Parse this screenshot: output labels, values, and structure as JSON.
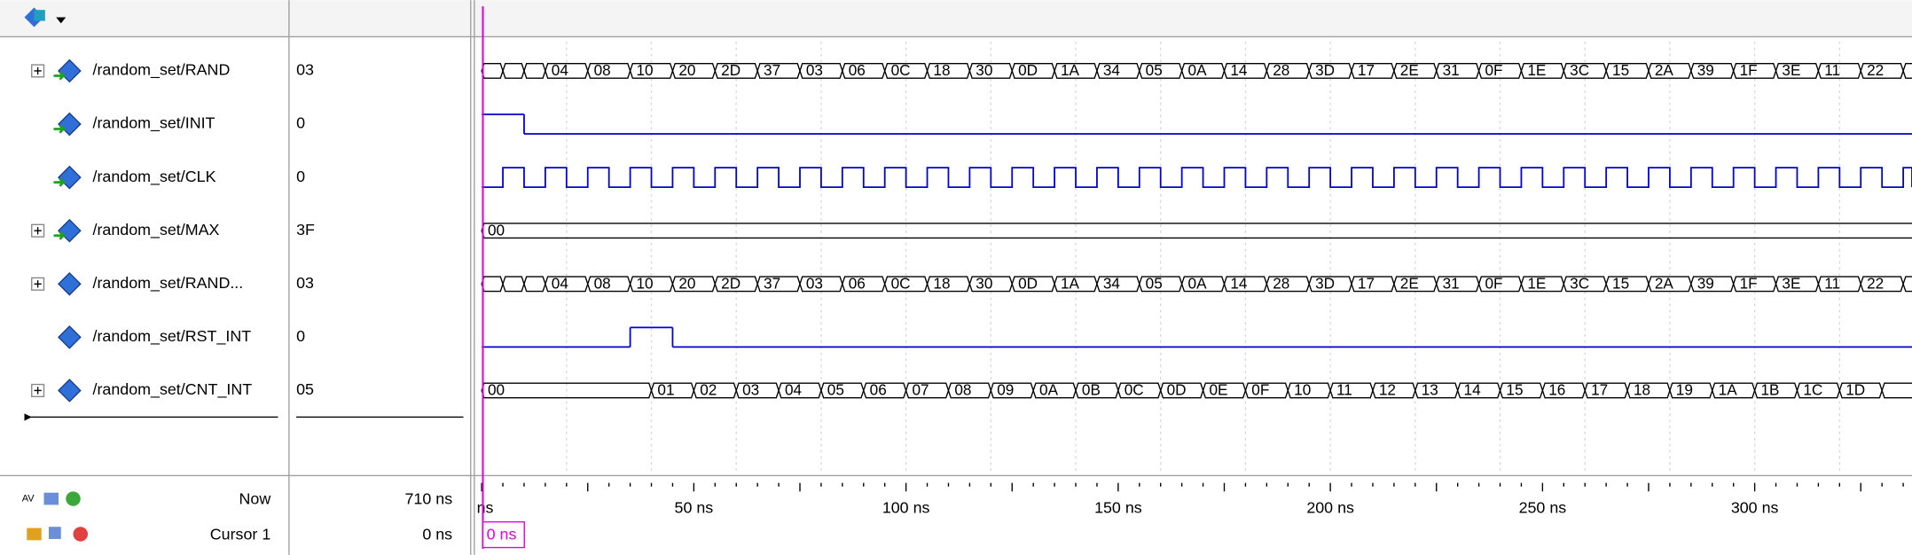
{
  "signals": [
    {
      "name": "/random_set/RAND",
      "value": "03",
      "expandable": true,
      "input": true,
      "wave": {
        "kind": "bus",
        "cells": [
          null,
          null,
          null,
          "04",
          "08",
          "10",
          "20",
          "2D",
          "37",
          "03",
          "06",
          "0C",
          "18",
          "30",
          "0D",
          "1A",
          "34",
          "05",
          "0A",
          "14",
          "28",
          "3D",
          "17",
          "2E",
          "31",
          "0F",
          "1E",
          "3C",
          "15",
          "2A",
          "39",
          "1F",
          "3E",
          "11",
          "22",
          null
        ],
        "starts_ns": [
          0,
          5,
          10,
          15,
          25,
          35,
          45,
          55,
          65,
          75,
          85,
          95,
          105,
          115,
          125,
          135,
          145,
          155,
          165,
          175,
          185,
          195,
          205,
          215,
          225,
          235,
          245,
          255,
          265,
          275,
          285,
          295,
          305,
          315,
          325,
          335
        ]
      }
    },
    {
      "name": "/random_set/INIT",
      "value": "0",
      "expandable": false,
      "input": true,
      "wave": {
        "kind": "bit",
        "segments": [
          {
            "level": 1,
            "from_ns": 0
          },
          {
            "level": 0,
            "from_ns": 10
          }
        ]
      }
    },
    {
      "name": "/random_set/CLK",
      "value": "0",
      "expandable": false,
      "input": true,
      "wave": {
        "kind": "clock",
        "period_ns": 10,
        "first_rise_ns": 5
      }
    },
    {
      "name": "/random_set/MAX",
      "value": "3F",
      "expandable": true,
      "input": true,
      "wave": {
        "kind": "bus",
        "cells": [
          "00"
        ],
        "starts_ns": [
          0
        ]
      }
    },
    {
      "name": "/random_set/RAND...",
      "value": "03",
      "expandable": true,
      "input": false,
      "wave": {
        "kind": "bus",
        "cells": [
          null,
          null,
          null,
          "04",
          "08",
          "10",
          "20",
          "2D",
          "37",
          "03",
          "06",
          "0C",
          "18",
          "30",
          "0D",
          "1A",
          "34",
          "05",
          "0A",
          "14",
          "28",
          "3D",
          "17",
          "2E",
          "31",
          "0F",
          "1E",
          "3C",
          "15",
          "2A",
          "39",
          "1F",
          "3E",
          "11",
          "22",
          null
        ],
        "starts_ns": [
          0,
          5,
          10,
          15,
          25,
          35,
          45,
          55,
          65,
          75,
          85,
          95,
          105,
          115,
          125,
          135,
          145,
          155,
          165,
          175,
          185,
          195,
          205,
          215,
          225,
          235,
          245,
          255,
          265,
          275,
          285,
          295,
          305,
          315,
          325,
          335
        ]
      }
    },
    {
      "name": "/random_set/RST_INT",
      "value": "0",
      "expandable": false,
      "input": false,
      "wave": {
        "kind": "bit",
        "segments": [
          {
            "level": 0,
            "from_ns": 0
          },
          {
            "level": 1,
            "from_ns": 35
          },
          {
            "level": 0,
            "from_ns": 45
          }
        ]
      }
    },
    {
      "name": "/random_set/CNT_INT",
      "value": "05",
      "expandable": true,
      "input": false,
      "wave": {
        "kind": "bus",
        "cells": [
          "00",
          "01",
          "02",
          "03",
          "04",
          "05",
          "06",
          "07",
          "08",
          "09",
          "0A",
          "0B",
          "0C",
          "0D",
          "0E",
          "0F",
          "10",
          "11",
          "12",
          "13",
          "14",
          "15",
          "16",
          "17",
          "18",
          "19",
          "1A",
          "1B",
          "1C",
          "1D",
          null
        ],
        "starts_ns": [
          0,
          40,
          50,
          60,
          70,
          80,
          90,
          100,
          110,
          120,
          130,
          140,
          150,
          160,
          170,
          180,
          190,
          200,
          210,
          220,
          230,
          240,
          250,
          260,
          270,
          280,
          290,
          300,
          310,
          320,
          330
        ]
      }
    }
  ],
  "timeline": {
    "labels": [
      "ns",
      "50 ns",
      "100 ns",
      "150 ns",
      "200 ns",
      "250 ns",
      "300 ns"
    ]
  },
  "footer": {
    "now_label": "Now",
    "now_value": "710 ns",
    "cursor_label": "Cursor 1",
    "cursor_value": "0 ns",
    "cursor_marker": "0 ns"
  }
}
